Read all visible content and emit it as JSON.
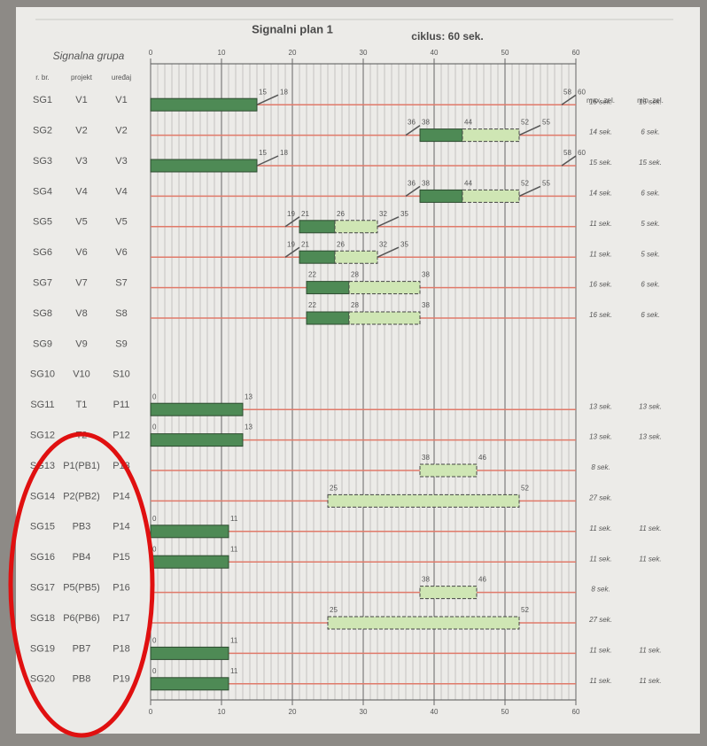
{
  "header": {
    "title": "Signalni plan 1",
    "cycle": "ciklus: 60 sek.",
    "group": "Signalna grupa",
    "col_no": "r. br.",
    "col_project": "projekt",
    "col_device": "uređaj",
    "col_max": "max. zel.",
    "col_min": "min. zel."
  },
  "axis": {
    "min": 0,
    "max": 60,
    "ticks": [
      0,
      10,
      20,
      30,
      40,
      50,
      60
    ]
  },
  "rows": [
    {
      "sg": "SG1",
      "projekt": "V1",
      "uredaj": "V1",
      "marks": [
        15,
        18,
        58,
        60
      ],
      "segs": [
        {
          "kind": "green",
          "from": 0,
          "to": 15
        },
        {
          "kind": "amber",
          "from": 15,
          "to": 18
        },
        {
          "kind": "amber",
          "from": 58,
          "to": 60
        }
      ],
      "max": "15 sek.",
      "min": "15 sek."
    },
    {
      "sg": "SG2",
      "projekt": "V2",
      "uredaj": "V2",
      "marks": [
        36,
        38,
        44,
        52,
        55
      ],
      "segs": [
        {
          "kind": "amber",
          "from": 36,
          "to": 38
        },
        {
          "kind": "green",
          "from": 38,
          "to": 44
        },
        {
          "kind": "ext",
          "from": 44,
          "to": 52
        },
        {
          "kind": "amber",
          "from": 52,
          "to": 55
        }
      ],
      "max": "14 sek.",
      "min": "6 sek."
    },
    {
      "sg": "SG3",
      "projekt": "V3",
      "uredaj": "V3",
      "marks": [
        15,
        18,
        58,
        60
      ],
      "segs": [
        {
          "kind": "green",
          "from": 0,
          "to": 15
        },
        {
          "kind": "amber",
          "from": 15,
          "to": 18
        },
        {
          "kind": "amber",
          "from": 58,
          "to": 60
        }
      ],
      "max": "15 sek.",
      "min": "15 sek."
    },
    {
      "sg": "SG4",
      "projekt": "V4",
      "uredaj": "V4",
      "marks": [
        36,
        38,
        44,
        52,
        55
      ],
      "segs": [
        {
          "kind": "amber",
          "from": 36,
          "to": 38
        },
        {
          "kind": "green",
          "from": 38,
          "to": 44
        },
        {
          "kind": "ext",
          "from": 44,
          "to": 52
        },
        {
          "kind": "amber",
          "from": 52,
          "to": 55
        }
      ],
      "max": "14 sek.",
      "min": "6 sek."
    },
    {
      "sg": "SG5",
      "projekt": "V5",
      "uredaj": "V5",
      "marks": [
        19,
        21,
        26,
        32,
        35
      ],
      "segs": [
        {
          "kind": "amber",
          "from": 19,
          "to": 21
        },
        {
          "kind": "green",
          "from": 21,
          "to": 26
        },
        {
          "kind": "ext",
          "from": 26,
          "to": 32
        },
        {
          "kind": "amber",
          "from": 32,
          "to": 35
        }
      ],
      "max": "11 sek.",
      "min": "5 sek."
    },
    {
      "sg": "SG6",
      "projekt": "V6",
      "uredaj": "V6",
      "marks": [
        19,
        21,
        26,
        32,
        35
      ],
      "segs": [
        {
          "kind": "amber",
          "from": 19,
          "to": 21
        },
        {
          "kind": "green",
          "from": 21,
          "to": 26
        },
        {
          "kind": "ext",
          "from": 26,
          "to": 32
        },
        {
          "kind": "amber",
          "from": 32,
          "to": 35
        }
      ],
      "max": "11 sek.",
      "min": "5 sek."
    },
    {
      "sg": "SG7",
      "projekt": "V7",
      "uredaj": "S7",
      "marks": [
        22,
        28,
        38
      ],
      "segs": [
        {
          "kind": "green",
          "from": 22,
          "to": 28
        },
        {
          "kind": "ext",
          "from": 28,
          "to": 38
        }
      ],
      "max": "16 sek.",
      "min": "6 sek."
    },
    {
      "sg": "SG8",
      "projekt": "V8",
      "uredaj": "S8",
      "marks": [
        22,
        28,
        38
      ],
      "segs": [
        {
          "kind": "green",
          "from": 22,
          "to": 28
        },
        {
          "kind": "ext",
          "from": 28,
          "to": 38
        }
      ],
      "max": "16 sek.",
      "min": "6 sek."
    },
    {
      "sg": "SG9",
      "projekt": "V9",
      "uredaj": "S9",
      "marks": [],
      "segs": []
    },
    {
      "sg": "SG10",
      "projekt": "V10",
      "uredaj": "S10",
      "marks": [],
      "segs": []
    },
    {
      "sg": "SG11",
      "projekt": "T1",
      "uredaj": "P11",
      "marks": [
        0,
        13
      ],
      "segs": [
        {
          "kind": "green",
          "from": 0,
          "to": 13
        }
      ],
      "max": "13 sek.",
      "min": "13 sek."
    },
    {
      "sg": "SG12",
      "projekt": "T2",
      "uredaj": "P12",
      "marks": [
        0,
        13
      ],
      "segs": [
        {
          "kind": "green",
          "from": 0,
          "to": 13
        }
      ],
      "max": "13 sek.",
      "min": "13 sek."
    },
    {
      "sg": "SG13",
      "projekt": "P1(PB1)",
      "uredaj": "P13",
      "marks": [
        38,
        46
      ],
      "segs": [
        {
          "kind": "ext",
          "from": 38,
          "to": 46
        }
      ],
      "max": "8 sek."
    },
    {
      "sg": "SG14",
      "projekt": "P2(PB2)",
      "uredaj": "P14",
      "marks": [
        25,
        52
      ],
      "segs": [
        {
          "kind": "ext",
          "from": 25,
          "to": 52
        }
      ],
      "max": "27 sek."
    },
    {
      "sg": "SG15",
      "projekt": "PB3",
      "uredaj": "P14",
      "marks": [
        0,
        11
      ],
      "segs": [
        {
          "kind": "green",
          "from": 0,
          "to": 11
        }
      ],
      "max": "11 sek.",
      "min": "11 sek."
    },
    {
      "sg": "SG16",
      "projekt": "PB4",
      "uredaj": "P15",
      "marks": [
        0,
        11
      ],
      "segs": [
        {
          "kind": "green",
          "from": 0,
          "to": 11
        }
      ],
      "max": "11 sek.",
      "min": "11 sek."
    },
    {
      "sg": "SG17",
      "projekt": "P5(PB5)",
      "uredaj": "P16",
      "marks": [
        38,
        46
      ],
      "segs": [
        {
          "kind": "ext",
          "from": 38,
          "to": 46
        }
      ],
      "max": "8 sek."
    },
    {
      "sg": "SG18",
      "projekt": "P6(PB6)",
      "uredaj": "P17",
      "marks": [
        25,
        52
      ],
      "segs": [
        {
          "kind": "ext",
          "from": 25,
          "to": 52
        }
      ],
      "max": "27 sek."
    },
    {
      "sg": "SG19",
      "projekt": "PB7",
      "uredaj": "P18",
      "marks": [
        0,
        11
      ],
      "segs": [
        {
          "kind": "green",
          "from": 0,
          "to": 11
        }
      ],
      "max": "11 sek.",
      "min": "11 sek."
    },
    {
      "sg": "SG20",
      "projekt": "PB8",
      "uredaj": "P19",
      "marks": [
        0,
        11
      ],
      "segs": [
        {
          "kind": "green",
          "from": 0,
          "to": 11
        }
      ],
      "max": "11 sek.",
      "min": "11 sek."
    }
  ]
}
